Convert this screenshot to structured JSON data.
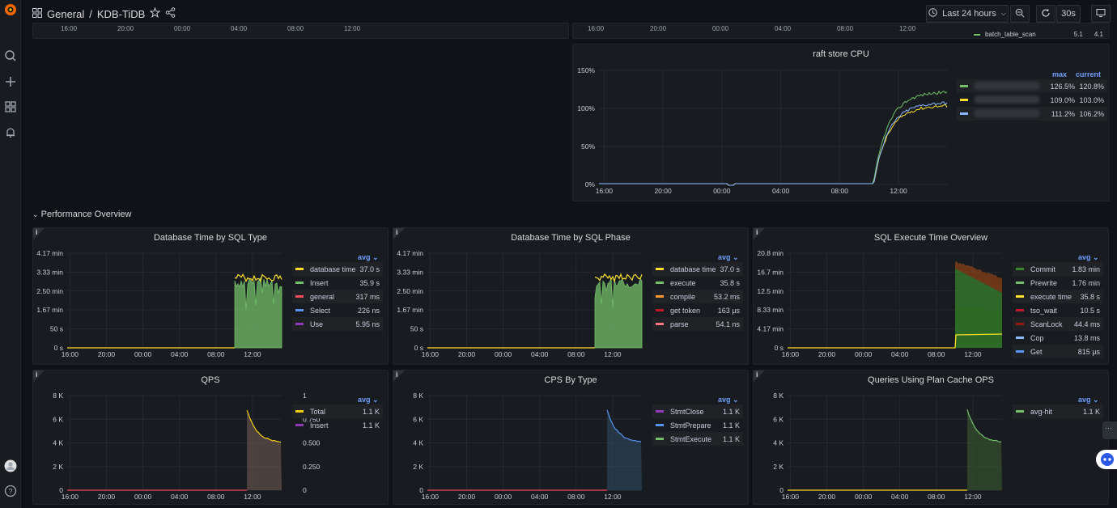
{
  "header": {
    "breadcrumb_folder": "General",
    "breadcrumb_sep": "/",
    "breadcrumb_dashboard": "KDB-TiDB",
    "time_range": "Last 24 hours",
    "refresh_interval": "30s"
  },
  "top_axis_labels_left": [
    "16:00",
    "20:00",
    "00:00",
    "04:00",
    "08:00",
    "12:00"
  ],
  "top_axis_labels_right": [
    "16:00",
    "20:00",
    "00:00",
    "04:00",
    "08:00",
    "12:00"
  ],
  "top_partial_legend": {
    "name": "batch_table_scan",
    "v1": "5.1",
    "v2": "4.1"
  },
  "section_title": "Performance Overview",
  "time_axis": [
    "16:00",
    "20:00",
    "00:00",
    "04:00",
    "08:00",
    "12:00"
  ],
  "raft": {
    "title": "raft store CPU",
    "col_max": "max",
    "col_current": "current",
    "rows": [
      {
        "color": "#73bf69",
        "max": "126.5%",
        "current": "120.8%"
      },
      {
        "color": "#fade2a",
        "max": "109.0%",
        "current": "103.0%"
      },
      {
        "color": "#8ab8ff",
        "max": "111.2%",
        "current": "106.2%"
      }
    ]
  },
  "panels": [
    {
      "title": "Database Time by SQL Type",
      "avg": "avg",
      "y_ticks": [
        "4.17 min",
        "3.33 min",
        "2.50 min",
        "1.67 min",
        "50 s",
        "0 s"
      ],
      "legend": [
        {
          "name": "database time",
          "value": "37.0 s",
          "color": "#fade2a"
        },
        {
          "name": "Insert",
          "value": "35.9 s",
          "color": "#73bf69"
        },
        {
          "name": "general",
          "value": "317 ms",
          "color": "#f2495c"
        },
        {
          "name": "Select",
          "value": "226 ns",
          "color": "#5794f2"
        },
        {
          "name": "Use",
          "value": "5.95 ns",
          "color": "#8f3bb8"
        }
      ]
    },
    {
      "title": "Database Time by SQL Phase",
      "avg": "avg",
      "y_ticks": [
        "4.17 min",
        "3.33 min",
        "2.50 min",
        "1.67 min",
        "50 s",
        "0 s"
      ],
      "legend": [
        {
          "name": "database time",
          "value": "37.0 s",
          "color": "#fade2a"
        },
        {
          "name": "execute",
          "value": "35.8 s",
          "color": "#73bf69"
        },
        {
          "name": "compile",
          "value": "53.2 ms",
          "color": "#ff9830"
        },
        {
          "name": "get token",
          "value": "163 µs",
          "color": "#c4162a"
        },
        {
          "name": "parse",
          "value": "54.1 ns",
          "color": "#ff7383"
        }
      ]
    },
    {
      "title": "SQL Execute Time Overview",
      "avg": "avg",
      "y_ticks": [
        "20.8 min",
        "16.7 min",
        "12.5 min",
        "8.33 min",
        "4.17 min",
        "0 s"
      ],
      "legend": [
        {
          "name": "Commit",
          "value": "1.83 min",
          "color": "#37872d"
        },
        {
          "name": "Prewrite",
          "value": "1.76 min",
          "color": "#73bf69"
        },
        {
          "name": "execute time",
          "value": "35.8 s",
          "color": "#fade2a"
        },
        {
          "name": "tso_wait",
          "value": "10.5 s",
          "color": "#c4162a"
        },
        {
          "name": "ScanLock",
          "value": "44.4 ms",
          "color": "#96170f"
        },
        {
          "name": "Cop",
          "value": "13.8 ms",
          "color": "#8ab8ff"
        },
        {
          "name": "Get",
          "value": "815 µs",
          "color": "#5794f2"
        }
      ]
    },
    {
      "title": "QPS",
      "avg": "avg",
      "y_ticks": [
        "8 K",
        "6 K",
        "4 K",
        "2 K",
        "0"
      ],
      "y2_ticks": [
        "1",
        "0.750",
        "0.500",
        "0.250",
        "0"
      ],
      "legend": [
        {
          "name": "Total",
          "value": "1.1 K",
          "color": "#f2cc0c"
        },
        {
          "name": "Insert",
          "value": "1.1 K",
          "color": "#8f3bb8"
        }
      ]
    },
    {
      "title": "CPS By Type",
      "avg": "avg",
      "y_ticks": [
        "8 K",
        "6 K",
        "4 K",
        "2 K",
        "0"
      ],
      "legend": [
        {
          "name": "StmtClose",
          "value": "1.1 K",
          "color": "#8f3bb8"
        },
        {
          "name": "StmtPrepare",
          "value": "1.1 K",
          "color": "#5794f2"
        },
        {
          "name": "StmtExecute",
          "value": "1.1 K",
          "color": "#73bf69"
        }
      ]
    },
    {
      "title": "Queries Using Plan Cache OPS",
      "avg": "avg",
      "y_ticks": [
        "8 K",
        "6 K",
        "4 K",
        "2 K",
        "0"
      ],
      "legend": [
        {
          "name": "avg-hit",
          "value": "1.1 K",
          "color": "#73bf69"
        }
      ]
    }
  ]
}
